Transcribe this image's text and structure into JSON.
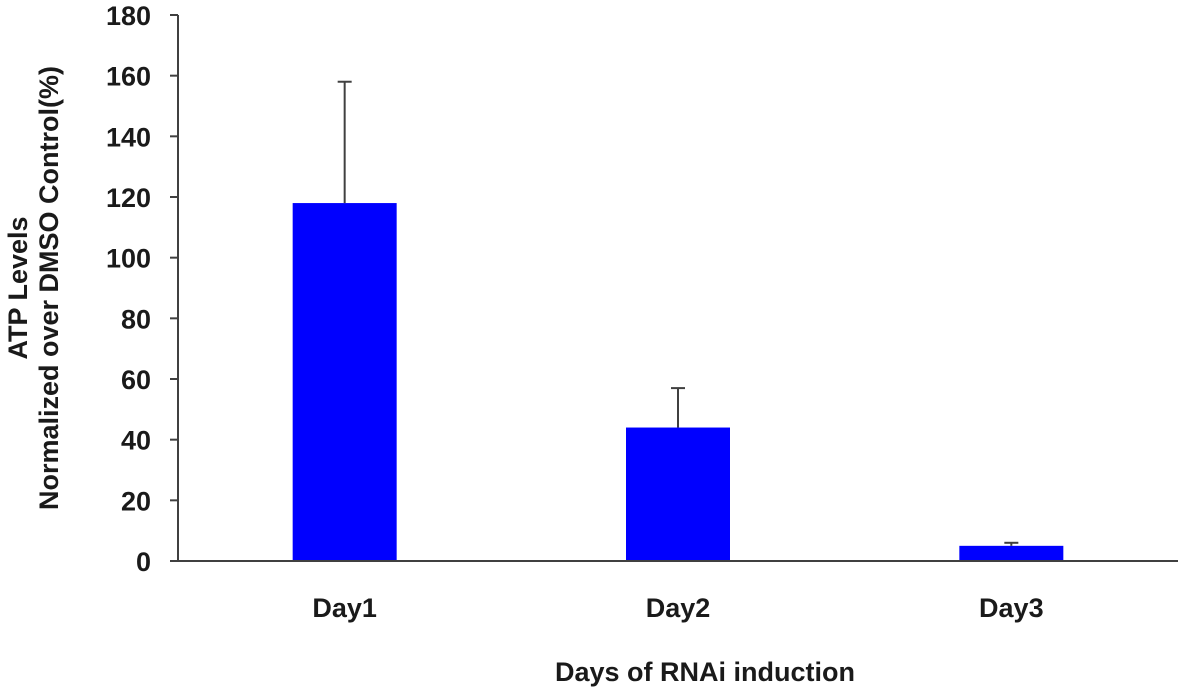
{
  "chart_data": {
    "type": "bar",
    "categories": [
      "Day1",
      "Day2",
      "Day3"
    ],
    "series": [
      {
        "values": [
          118,
          44,
          5
        ],
        "error": [
          40,
          13,
          1
        ],
        "color": "#0000ff"
      }
    ],
    "xlabel": "Days of RNAi induction",
    "ylabel_lines": [
      "ATP Levels",
      "Normalized over DMSO Control(%)"
    ],
    "ylim": [
      0,
      180
    ],
    "yticks": [
      0,
      20,
      40,
      60,
      80,
      100,
      120,
      140,
      160,
      180
    ],
    "grid": false,
    "legend": "none"
  }
}
